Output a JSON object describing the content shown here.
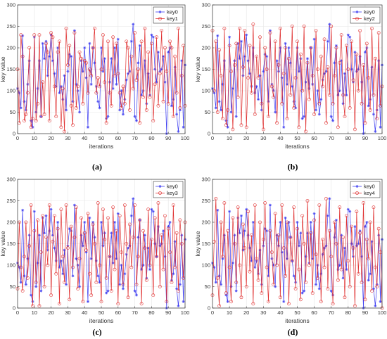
{
  "chart_data": [
    {
      "type": "line",
      "caption": "(a)",
      "xlabel": "iterations",
      "ylabel": "key value",
      "xlim": [
        0,
        100
      ],
      "ylim": [
        0,
        300
      ],
      "xticks": [
        0,
        10,
        20,
        30,
        40,
        50,
        60,
        70,
        80,
        90,
        100
      ],
      "yticks": [
        0,
        50,
        100,
        150,
        200,
        250,
        300
      ],
      "grid": true,
      "legend": "top-right",
      "series": [
        {
          "name": "key0",
          "color": "#3b3bf0",
          "marker": "star",
          "values": [
            105,
            95,
            60,
            228,
            75,
            55,
            115,
            170,
            30,
            15,
            225,
            50,
            105,
            170,
            40,
            210,
            175,
            215,
            135,
            180,
            230,
            170,
            140,
            110,
            200,
            95,
            110,
            80,
            135,
            55,
            145,
            185,
            180,
            75,
            240,
            115,
            100,
            50,
            170,
            145,
            200,
            130,
            15,
            210,
            115,
            200,
            165,
            110,
            75,
            60,
            200,
            145,
            175,
            35,
            40,
            120,
            175,
            105,
            200,
            115,
            220,
            55,
            100,
            45,
            80,
            125,
            140,
            145,
            215,
            255,
            40,
            30,
            165,
            205,
            90,
            100,
            170,
            70,
            140,
            90,
            230,
            225,
            150,
            120,
            190,
            145,
            150,
            180,
            120,
            0,
            190,
            200,
            65,
            80,
            155,
            45,
            5,
            55,
            170,
            15,
            160
          ]
        },
        {
          "name": "key1",
          "color": "#e03030",
          "marker": "circle",
          "values": [
            150,
            25,
            230,
            180,
            30,
            45,
            95,
            200,
            15,
            35,
            230,
            30,
            70,
            230,
            40,
            120,
            45,
            210,
            190,
            30,
            235,
            225,
            110,
            40,
            190,
            215,
            15,
            105,
            5,
            245,
            160,
            205,
            65,
            20,
            235,
            60,
            110,
            190,
            175,
            70,
            170,
            165,
            95,
            150,
            135,
            200,
            245,
            95,
            130,
            110,
            150,
            230,
            120,
            25,
            215,
            95,
            65,
            225,
            135,
            210,
            140,
            95,
            60,
            110,
            70,
            215,
            200,
            55,
            180,
            105,
            235,
            125,
            150,
            25,
            215,
            85,
            245,
            55,
            190,
            85,
            210,
            30,
            115,
            225,
            65,
            140,
            240,
            75,
            200,
            145,
            70,
            215,
            200,
            40,
            180,
            95,
            245,
            60,
            135,
            205,
            65
          ]
        }
      ]
    },
    {
      "type": "line",
      "caption": "(b)",
      "xlabel": "iterations",
      "ylabel": "key value",
      "xlim": [
        0,
        100
      ],
      "ylim": [
        0,
        300
      ],
      "xticks": [
        0,
        10,
        20,
        30,
        40,
        50,
        60,
        70,
        80,
        90,
        100
      ],
      "yticks": [
        0,
        50,
        100,
        150,
        200,
        250,
        300
      ],
      "grid": true,
      "legend": "top-right",
      "series": [
        {
          "name": "key0",
          "color": "#3b3bf0",
          "marker": "star",
          "values": [
            105,
            95,
            60,
            228,
            75,
            55,
            115,
            170,
            30,
            15,
            225,
            50,
            105,
            170,
            40,
            210,
            175,
            215,
            135,
            180,
            230,
            170,
            140,
            110,
            200,
            95,
            110,
            80,
            135,
            55,
            145,
            185,
            180,
            75,
            240,
            115,
            100,
            50,
            170,
            145,
            200,
            130,
            15,
            210,
            115,
            200,
            165,
            110,
            75,
            60,
            200,
            145,
            175,
            35,
            40,
            120,
            175,
            105,
            200,
            115,
            220,
            55,
            100,
            45,
            80,
            125,
            140,
            145,
            215,
            255,
            40,
            30,
            165,
            205,
            90,
            100,
            170,
            70,
            140,
            90,
            230,
            225,
            150,
            120,
            190,
            145,
            150,
            180,
            120,
            0,
            190,
            200,
            65,
            80,
            155,
            45,
            5,
            55,
            170,
            15,
            160
          ]
        },
        {
          "name": "key2",
          "color": "#e03030",
          "marker": "circle",
          "values": [
            240,
            100,
            215,
            50,
            195,
            135,
            35,
            245,
            20,
            55,
            205,
            145,
            10,
            160,
            210,
            85,
            245,
            20,
            155,
            240,
            15,
            130,
            205,
            95,
            255,
            45,
            180,
            130,
            225,
            70,
            10,
            200,
            150,
            40,
            235,
            110,
            85,
            215,
            25,
            160,
            245,
            70,
            140,
            200,
            35,
            175,
            90,
            250,
            60,
            130,
            215,
            15,
            185,
            100,
            250,
            5,
            165,
            80,
            200,
            135,
            45,
            240,
            150,
            70,
            180,
            110,
            220,
            25,
            155,
            90,
            250,
            70,
            135,
            200,
            15,
            165,
            230,
            90,
            40,
            205,
            150,
            60,
            215,
            125,
            10,
            185,
            100,
            240,
            70,
            160,
            25,
            210,
            130,
            55,
            245,
            90,
            175,
            35,
            235,
            65,
            110
          ]
        }
      ]
    },
    {
      "type": "line",
      "caption": "(c)",
      "xlabel": "iterations",
      "ylabel": "key value",
      "xlim": [
        0,
        100
      ],
      "ylim": [
        0,
        300
      ],
      "xticks": [
        0,
        10,
        20,
        30,
        40,
        50,
        60,
        70,
        80,
        90,
        100
      ],
      "yticks": [
        0,
        50,
        100,
        150,
        200,
        250,
        300
      ],
      "grid": true,
      "legend": "top-right",
      "series": [
        {
          "name": "key0",
          "color": "#3b3bf0",
          "marker": "star",
          "values": [
            105,
            95,
            60,
            228,
            75,
            55,
            115,
            170,
            30,
            15,
            225,
            50,
            105,
            170,
            40,
            210,
            175,
            215,
            135,
            180,
            230,
            170,
            140,
            110,
            200,
            95,
            110,
            80,
            135,
            55,
            145,
            185,
            180,
            75,
            240,
            115,
            100,
            50,
            170,
            145,
            200,
            130,
            15,
            210,
            115,
            200,
            165,
            110,
            75,
            60,
            200,
            145,
            175,
            35,
            40,
            120,
            175,
            105,
            200,
            115,
            220,
            55,
            100,
            45,
            80,
            125,
            140,
            145,
            215,
            255,
            40,
            30,
            165,
            205,
            90,
            100,
            170,
            70,
            140,
            90,
            230,
            225,
            150,
            120,
            190,
            145,
            150,
            180,
            120,
            0,
            190,
            200,
            65,
            80,
            155,
            45,
            5,
            55,
            170,
            15,
            160
          ]
        },
        {
          "name": "key3",
          "color": "#e03030",
          "marker": "circle",
          "values": [
            45,
            200,
            95,
            40,
            120,
            200,
            70,
            145,
            240,
            5,
            180,
            60,
            205,
            5,
            130,
            215,
            50,
            165,
            100,
            240,
            30,
            155,
            215,
            80,
            185,
            10,
            230,
            120,
            60,
            240,
            140,
            20,
            190,
            95,
            165,
            235,
            45,
            115,
            210,
            15,
            175,
            135,
            220,
            80,
            30,
            195,
            150,
            60,
            245,
            100,
            15,
            230,
            160,
            70,
            210,
            120,
            40,
            235,
            90,
            180,
            10,
            215,
            130,
            55,
            240,
            150,
            25,
            195,
            95,
            165,
            240,
            55,
            120,
            205,
            10,
            180,
            140,
            65,
            230,
            100,
            160,
            30,
            210,
            120,
            245,
            50,
            170,
            90,
            215,
            15,
            185,
            130,
            60,
            240,
            95,
            175,
            40,
            205,
            150,
            70,
            200
          ]
        }
      ]
    },
    {
      "type": "line",
      "caption": "(d)",
      "xlabel": "iterations",
      "ylabel": "key value",
      "xlim": [
        0,
        100
      ],
      "ylim": [
        0,
        300
      ],
      "xticks": [
        0,
        10,
        20,
        30,
        40,
        50,
        60,
        70,
        80,
        90,
        100
      ],
      "yticks": [
        0,
        50,
        100,
        150,
        200,
        250,
        300
      ],
      "grid": true,
      "legend": "top-right",
      "series": [
        {
          "name": "key0",
          "color": "#3b3bf0",
          "marker": "star",
          "values": [
            105,
            95,
            60,
            228,
            75,
            55,
            115,
            170,
            30,
            15,
            225,
            50,
            105,
            170,
            40,
            210,
            175,
            215,
            135,
            180,
            230,
            170,
            140,
            110,
            200,
            95,
            110,
            80,
            135,
            55,
            145,
            185,
            180,
            75,
            240,
            115,
            100,
            50,
            170,
            145,
            200,
            130,
            15,
            210,
            115,
            200,
            165,
            110,
            75,
            60,
            200,
            145,
            175,
            35,
            40,
            120,
            175,
            105,
            200,
            115,
            220,
            55,
            100,
            45,
            80,
            125,
            140,
            145,
            215,
            255,
            40,
            30,
            165,
            205,
            90,
            100,
            170,
            70,
            140,
            90,
            230,
            225,
            150,
            120,
            190,
            145,
            150,
            180,
            120,
            0,
            190,
            200,
            65,
            80,
            155,
            45,
            5,
            55,
            170,
            15,
            160
          ]
        },
        {
          "name": "key4",
          "color": "#e03030",
          "marker": "circle",
          "values": [
            30,
            155,
            255,
            70,
            5,
            200,
            120,
            245,
            35,
            180,
            95,
            15,
            210,
            150,
            60,
            235,
            100,
            25,
            195,
            140,
            50,
            225,
            85,
            170,
            10,
            240,
            115,
            65,
            200,
            35,
            160,
            245,
            95,
            15,
            180,
            130,
            55,
            220,
            100,
            170,
            25,
            240,
            140,
            75,
            200,
            10,
            165,
            110,
            235,
            45,
            185,
            90,
            20,
            215,
            150,
            60,
            250,
            100,
            175,
            35,
            205,
            125,
            70,
            240,
            15,
            160,
            95,
            255,
            45,
            180,
            120,
            10,
            200,
            150,
            65,
            235,
            90,
            165,
            25,
            215,
            110,
            50,
            190,
            140,
            5,
            225,
            80,
            175,
            60,
            245,
            20,
            160,
            115,
            200,
            40,
            235,
            95,
            50,
            185,
            130,
            0
          ]
        }
      ]
    }
  ]
}
